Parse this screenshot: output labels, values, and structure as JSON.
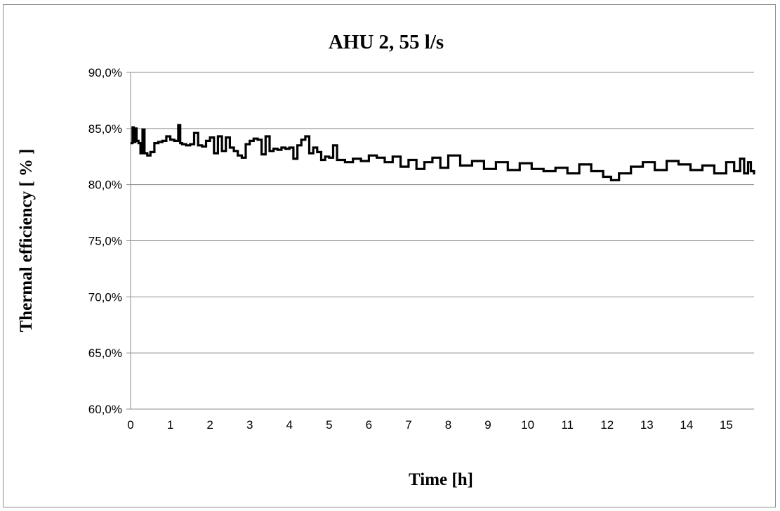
{
  "chart_data": {
    "type": "line",
    "title": "AHU 2, 55 l/s",
    "xlabel": "Time [h]",
    "ylabel": "Thermal efficiency [ % ]",
    "xlim": [
      0,
      15.7
    ],
    "ylim": [
      60,
      90
    ],
    "x_ticks": [
      0,
      1,
      2,
      3,
      4,
      5,
      6,
      7,
      8,
      9,
      10,
      11,
      12,
      13,
      14,
      15
    ],
    "x_tick_labels": [
      "0",
      "1",
      "2",
      "3",
      "4",
      "5",
      "6",
      "7",
      "8",
      "9",
      "10",
      "11",
      "12",
      "13",
      "14",
      "15"
    ],
    "y_ticks": [
      60,
      65,
      70,
      75,
      80,
      85,
      90
    ],
    "y_tick_labels": [
      "60,0%",
      "65,0%",
      "70,0%",
      "75,0%",
      "80,0%",
      "85,0%",
      "90,0%"
    ],
    "grid": "horizontal",
    "legend": "none",
    "series": [
      {
        "color": "#000000",
        "x": [
          0.0,
          0.05,
          0.08,
          0.12,
          0.15,
          0.2,
          0.25,
          0.3,
          0.35,
          0.42,
          0.5,
          0.6,
          0.7,
          0.8,
          0.9,
          1.0,
          1.1,
          1.2,
          1.25,
          1.3,
          1.4,
          1.5,
          1.6,
          1.7,
          1.8,
          1.9,
          2.0,
          2.1,
          2.2,
          2.3,
          2.4,
          2.5,
          2.6,
          2.7,
          2.8,
          2.9,
          3.0,
          3.1,
          3.2,
          3.3,
          3.4,
          3.5,
          3.6,
          3.7,
          3.8,
          3.9,
          4.0,
          4.1,
          4.2,
          4.3,
          4.4,
          4.5,
          4.6,
          4.7,
          4.8,
          4.9,
          5.0,
          5.1,
          5.2,
          5.4,
          5.6,
          5.8,
          6.0,
          6.2,
          6.4,
          6.6,
          6.8,
          7.0,
          7.2,
          7.4,
          7.6,
          7.8,
          8.0,
          8.3,
          8.6,
          8.9,
          9.2,
          9.5,
          9.8,
          10.1,
          10.4,
          10.7,
          11.0,
          11.3,
          11.6,
          11.9,
          12.1,
          12.3,
          12.6,
          12.9,
          13.2,
          13.5,
          13.8,
          14.1,
          14.4,
          14.7,
          15.0,
          15.2,
          15.35,
          15.45,
          15.55,
          15.62,
          15.7
        ],
        "y": [
          83.7,
          85.1,
          83.8,
          85.0,
          83.9,
          83.7,
          82.8,
          84.9,
          82.8,
          82.6,
          82.9,
          83.7,
          83.8,
          83.9,
          84.3,
          84.0,
          83.9,
          85.3,
          83.7,
          83.6,
          83.5,
          83.6,
          84.6,
          83.5,
          83.4,
          83.9,
          84.2,
          82.8,
          84.3,
          83.0,
          84.2,
          83.3,
          83.0,
          82.6,
          82.4,
          83.6,
          83.9,
          84.1,
          84.0,
          82.7,
          84.3,
          83.0,
          83.2,
          83.1,
          83.3,
          83.2,
          83.3,
          82.3,
          83.5,
          84.0,
          84.3,
          82.8,
          83.3,
          82.9,
          82.2,
          82.5,
          82.4,
          83.5,
          82.2,
          82.0,
          82.3,
          82.1,
          82.6,
          82.4,
          82.0,
          82.5,
          81.6,
          82.2,
          81.4,
          82.0,
          82.4,
          81.5,
          82.6,
          81.7,
          82.1,
          81.4,
          82.0,
          81.3,
          81.9,
          81.4,
          81.2,
          81.5,
          81.0,
          81.8,
          81.2,
          80.7,
          80.4,
          81.0,
          81.6,
          82.0,
          81.3,
          82.1,
          81.8,
          81.3,
          81.7,
          81.0,
          82.0,
          81.2,
          82.3,
          81.0,
          82.0,
          81.2,
          80.9
        ]
      }
    ]
  }
}
